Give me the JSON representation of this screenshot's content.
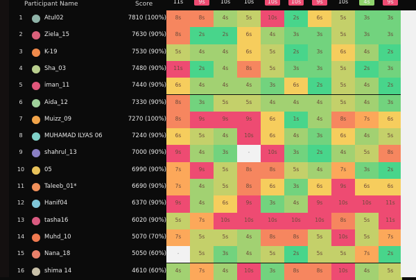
{
  "header": {
    "participant_name": "Participant Name",
    "score": "Score"
  },
  "colors": {
    "fast": "#48d58b",
    "good": "#72d37e",
    "ok": "#a2d172",
    "mid": "#c4d06a",
    "slow": "#f6cd5d",
    "slower": "#fca85a",
    "veryslow": "#f6865f",
    "slowest": "#ee4b72",
    "missing": "#f2f2f2"
  },
  "question_headers": [
    {
      "label": "11s",
      "style": "plain"
    },
    {
      "label": "9s",
      "style": "pink"
    },
    {
      "label": "10s",
      "style": "plain"
    },
    {
      "label": "10s",
      "style": "plain"
    },
    {
      "label": "10s",
      "style": "pink"
    },
    {
      "label": "10s",
      "style": "pink"
    },
    {
      "label": "9s",
      "style": "pink"
    },
    {
      "label": "10s",
      "style": "plain"
    },
    {
      "label": "4s",
      "style": "green"
    },
    {
      "label": "9s",
      "style": "pink"
    }
  ],
  "participants": [
    {
      "rank": "1",
      "name": "Atul02",
      "score": "7810 (100%)",
      "avatar": "#8fb3a8",
      "times": [
        "8s",
        "8s",
        "4s",
        "5s",
        "10s",
        "2s",
        "6s",
        "5s",
        "3s",
        "3s"
      ]
    },
    {
      "rank": "2",
      "name": "Ziela_15",
      "score": "7630 (90%)",
      "avatar": "#d9607a",
      "times": [
        "8s",
        "2s",
        "2s",
        "6s",
        "4s",
        "3s",
        "3s",
        "5s",
        "3s",
        "3s"
      ]
    },
    {
      "rank": "3",
      "name": "K-19",
      "score": "7530 (90%)",
      "avatar": "#f08a4b",
      "times": [
        "5s",
        "4s",
        "4s",
        "6s",
        "5s",
        "2s",
        "3s",
        "6s",
        "4s",
        "2s"
      ]
    },
    {
      "rank": "4",
      "name": "Sha_03",
      "score": "7480 (90%)",
      "avatar": "#b9cf8e",
      "times": [
        "11s",
        "2s",
        "4s",
        "8s",
        "5s",
        "3s",
        "3s",
        "5s",
        "2s",
        "3s"
      ]
    },
    {
      "rank": "5",
      "name": "iman_11",
      "score": "7440 (90%)",
      "avatar": "#e0567a",
      "times": [
        "6s",
        "4s",
        "4s",
        "4s",
        "3s",
        "6s",
        "2s",
        "5s",
        "4s",
        "2s"
      ]
    },
    {
      "rank": "6",
      "name": "Aida_12",
      "score": "7330 (90%)",
      "avatar": "#9fd09a",
      "times": [
        "8s",
        "3s",
        "5s",
        "5s",
        "4s",
        "4s",
        "4s",
        "5s",
        "4s",
        "3s"
      ]
    },
    {
      "rank": "7",
      "name": "Muizz_09",
      "score": "7270 (100%)",
      "avatar": "#f2a44a",
      "times": [
        "8s",
        "9s",
        "9s",
        "9s",
        "6s",
        "1s",
        "4s",
        "8s",
        "7s",
        "6s"
      ]
    },
    {
      "rank": "8",
      "name": "MUHAMAD ILYAS 06",
      "score": "7240 (90%)",
      "avatar": "#7fd0c8",
      "times": [
        "6s",
        "5s",
        "4s",
        "10s",
        "6s",
        "4s",
        "3s",
        "6s",
        "4s",
        "5s"
      ]
    },
    {
      "rank": "9",
      "name": "shahrul_13",
      "score": "7000 (90%)",
      "avatar": "#8a7fc4",
      "times": [
        "9s",
        "4s",
        "3s",
        "-",
        "10s",
        "3s",
        "2s",
        "4s",
        "5s",
        "8s"
      ]
    },
    {
      "rank": "10",
      "name": "05",
      "score": "6990 (90%)",
      "avatar": "#e8c25a",
      "times": [
        "7s",
        "9s",
        "5s",
        "8s",
        "8s",
        "5s",
        "4s",
        "7s",
        "3s",
        "2s"
      ]
    },
    {
      "rank": "11",
      "name": "Taleeb_01*",
      "score": "6690 (90%)",
      "avatar": "#f0905a",
      "times": [
        "7s",
        "4s",
        "5s",
        "8s",
        "6s",
        "3s",
        "6s",
        "9s",
        "6s",
        "6s"
      ]
    },
    {
      "rank": "12",
      "name": "Hanif04",
      "score": "6370 (90%)",
      "avatar": "#7fc6d8",
      "times": [
        "9s",
        "4s",
        "6s",
        "9s",
        "3s",
        "4s",
        "9s",
        "10s",
        "10s",
        "11s"
      ]
    },
    {
      "rank": "13",
      "name": "tasha16",
      "score": "6020 (90%)",
      "avatar": "#d95a80",
      "times": [
        "5s",
        "7s",
        "10s",
        "10s",
        "10s",
        "10s",
        "10s",
        "8s",
        "5s",
        "11s"
      ]
    },
    {
      "rank": "14",
      "name": "Muhd_10",
      "score": "5070 (70%)",
      "avatar": "#f07a50",
      "times": [
        "7s",
        "5s",
        "5s",
        "4s",
        "8s",
        "8s",
        "5s",
        "10s",
        "5s",
        "7s"
      ]
    },
    {
      "rank": "15",
      "name": "Nana_18",
      "score": "5050 (60%)",
      "avatar": "#e8806a",
      "times": [
        "-",
        "5s",
        "3s",
        "4s",
        "5s",
        "2s",
        "5s",
        "5s",
        "7s",
        "2s"
      ]
    },
    {
      "rank": "16",
      "name": "shima 14",
      "score": "4610 (60%)",
      "avatar": "#c8c0a8",
      "times": [
        "4s",
        "7s",
        "4s",
        "10s",
        "3s",
        "8s",
        "8s",
        "10s",
        "4s",
        "5s"
      ]
    }
  ]
}
